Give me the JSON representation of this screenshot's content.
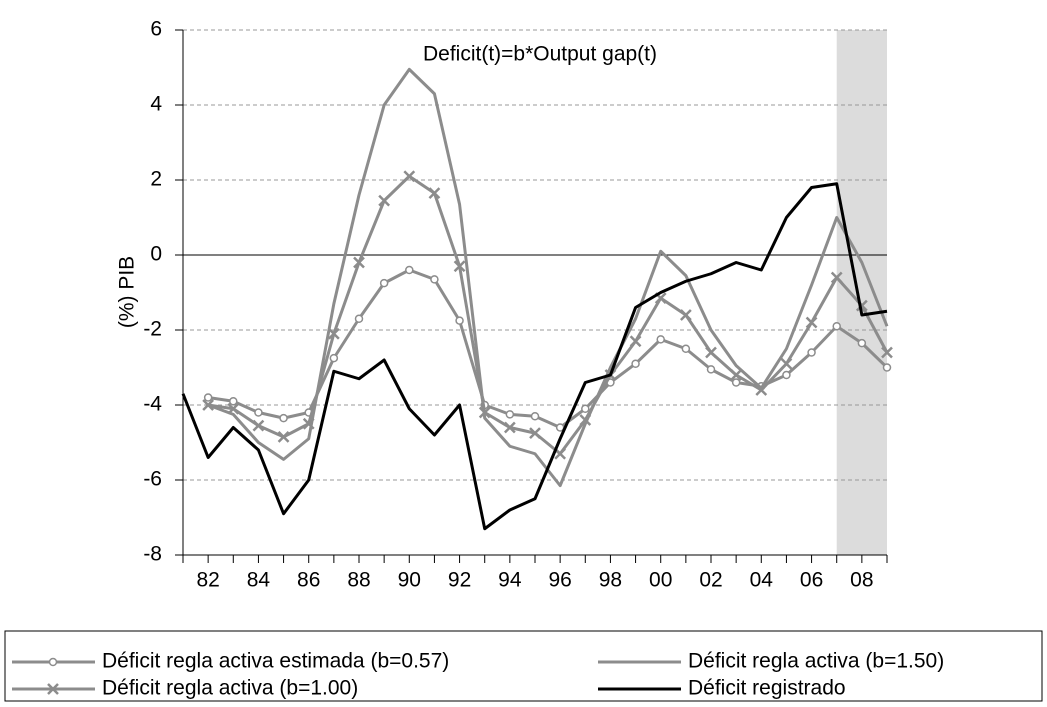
{
  "chart_data": {
    "type": "line",
    "annotation": "Deficit(t)=b*Output gap(t)",
    "y_label": "(%) PIB",
    "categories": [
      null,
      "82",
      null,
      "84",
      null,
      "86",
      null,
      "88",
      null,
      "90",
      null,
      "92",
      null,
      "94",
      null,
      "96",
      null,
      "98",
      null,
      "00",
      null,
      "02",
      null,
      "04",
      null,
      "06",
      null,
      "08",
      null
    ],
    "ylim": [
      -8,
      6
    ],
    "yticks": [
      -8,
      -6,
      -4,
      -2,
      0,
      2,
      4,
      6
    ],
    "grid": true,
    "zero_line": true,
    "shaded_index_range": [
      26,
      28
    ],
    "shade_color": "#dcdcdc",
    "legend": "bottom",
    "series": [
      {
        "name": "Déficit regla activa estimada (b=0.57)",
        "color": "#8c8c8c",
        "marker": "circle",
        "values": [
          null,
          -3.8,
          -3.9,
          -4.2,
          -4.35,
          -4.2,
          -2.75,
          -1.7,
          -0.75,
          -0.4,
          -0.65,
          -1.75,
          -4.0,
          -4.25,
          -4.3,
          -4.6,
          -4.1,
          -3.4,
          -2.9,
          -2.25,
          -2.5,
          -3.05,
          -3.4,
          -3.5,
          -3.2,
          -2.6,
          -1.9,
          -2.35,
          -3.0
        ]
      },
      {
        "name": "Déficit regla activa (b=1.00)",
        "color": "#8c8c8c",
        "marker": "x",
        "values": [
          null,
          -4.0,
          -4.1,
          -4.55,
          -4.85,
          -4.5,
          -2.1,
          -0.2,
          1.45,
          2.1,
          1.65,
          -0.3,
          -4.2,
          -4.6,
          -4.75,
          -5.3,
          -4.4,
          -3.2,
          -2.3,
          -1.15,
          -1.6,
          -2.6,
          -3.2,
          -3.6,
          -2.9,
          -1.8,
          -0.6,
          -1.35,
          -2.6
        ]
      },
      {
        "name": "Déficit regla activa (b=1.50)",
        "color": "#8c8c8c",
        "marker": "none",
        "values": [
          null,
          -4.0,
          -4.25,
          -5.0,
          -5.45,
          -4.9,
          -1.3,
          1.6,
          4.0,
          4.95,
          4.3,
          1.35,
          -4.35,
          -5.1,
          -5.3,
          -6.15,
          -4.5,
          -3.0,
          -1.7,
          0.1,
          -0.55,
          -2.0,
          -2.95,
          -3.55,
          -2.5,
          -0.8,
          1.0,
          -0.2,
          -1.9
        ]
      },
      {
        "name": "Déficit registrado",
        "color": "#000000",
        "marker": "none",
        "values": [
          -3.7,
          -5.4,
          -4.6,
          -5.2,
          -6.9,
          -6.0,
          -3.1,
          -3.3,
          -2.8,
          -4.1,
          -4.8,
          -4.0,
          -7.3,
          -6.8,
          -6.5,
          -4.9,
          -3.4,
          -3.2,
          -1.4,
          -1.0,
          -0.7,
          -0.5,
          -0.2,
          -0.4,
          1.0,
          1.8,
          1.9,
          -1.6,
          -1.5
        ]
      }
    ]
  }
}
